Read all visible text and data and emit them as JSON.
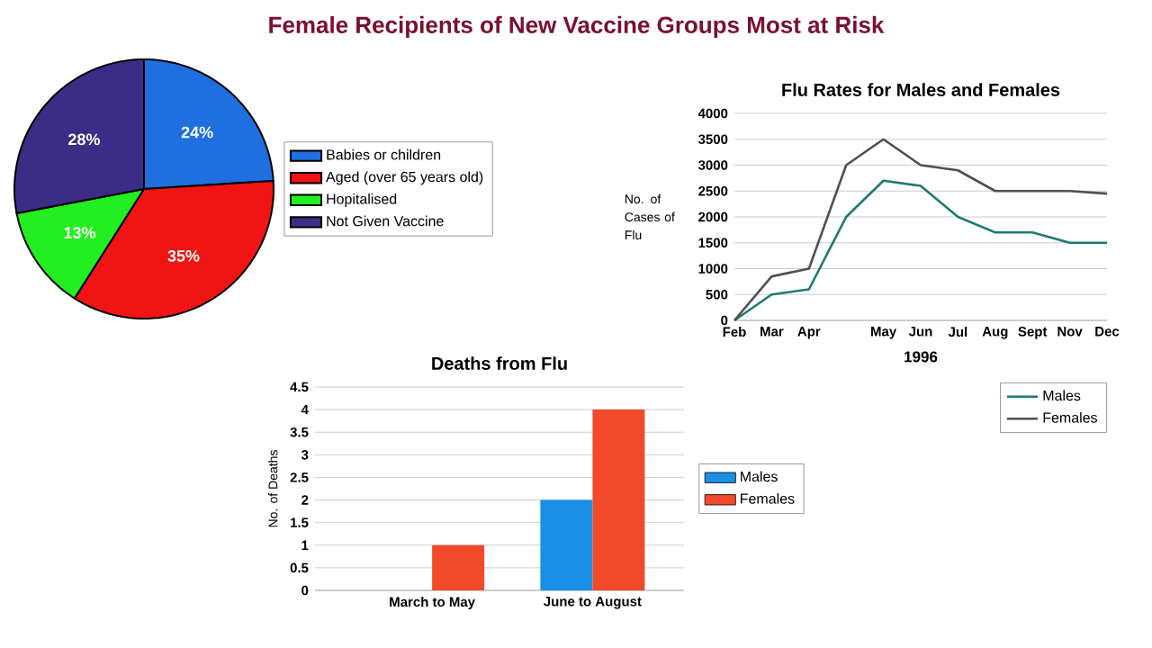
{
  "chart_data": [
    {
      "type": "pie",
      "title": "Female Recipients of New Vaccine Groups Most at Risk",
      "categories": [
        "Babies or children",
        "Aged (over 65 years old)",
        "Hopitalised",
        "Not Given Vaccine"
      ],
      "values": [
        24,
        35,
        13,
        28
      ],
      "colors": [
        "#1f6fe0",
        "#f01414",
        "#22ee22",
        "#3b2d85"
      ],
      "value_labels": [
        "24%",
        "35%",
        "13%",
        "28%"
      ],
      "legend": "right"
    },
    {
      "type": "line",
      "title": "Flu Rates for Males and Females",
      "xlabel": "1996",
      "ylabel": "No. of Cases of Flu",
      "categories": [
        "Feb",
        "Mar",
        "Apr",
        null,
        "May",
        "Jun",
        "Jul",
        "Aug",
        "Sept",
        "Nov",
        "Dec"
      ],
      "series": [
        {
          "name": "Males",
          "color": "#1f7a6e",
          "values": [
            0,
            500,
            600,
            2000,
            2700,
            2600,
            2000,
            1700,
            1700,
            1500,
            1500
          ]
        },
        {
          "name": "Females",
          "color": "#505050",
          "values": [
            0,
            850,
            1000,
            3000,
            3500,
            3000,
            2900,
            2500,
            2500,
            2500,
            2450
          ]
        }
      ],
      "ylim": [
        0,
        4000
      ],
      "yticks": [
        0,
        500,
        1000,
        1500,
        2000,
        2500,
        3000,
        3500,
        4000
      ],
      "grid": "y",
      "legend": "bottom right"
    },
    {
      "type": "bar",
      "title": "Deaths from Flu",
      "ylabel": "No. of Deaths",
      "categories": [
        "March to May",
        "June to August"
      ],
      "series": [
        {
          "name": "Males",
          "color": "#1a8fe8",
          "values": [
            null,
            2
          ]
        },
        {
          "name": "Females",
          "color": "#f04a2a",
          "values": [
            1,
            4
          ]
        }
      ],
      "ylim": [
        0,
        4.5
      ],
      "yticks": [
        0,
        0.5,
        1,
        1.5,
        2,
        2.5,
        3,
        3.5,
        4,
        4.5
      ],
      "grid": "y",
      "legend": "right"
    }
  ]
}
